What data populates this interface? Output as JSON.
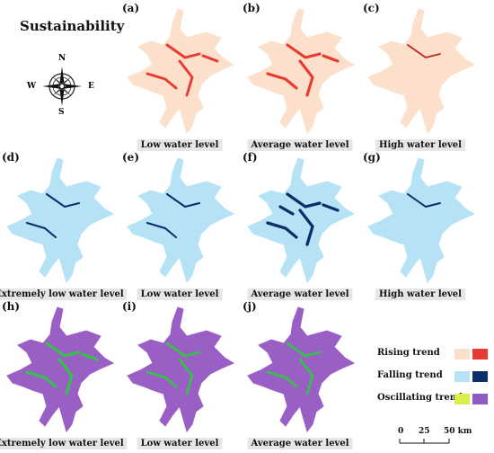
{
  "title": "Sustainability",
  "compass": {
    "n": "N",
    "s": "S",
    "e": "E",
    "w": "W"
  },
  "panels": [
    {
      "label": "(a)",
      "caption": "Low water level",
      "fill": "#fce0cb",
      "accent": "#e83a32",
      "accent_share": 0.35
    },
    {
      "label": "(b)",
      "caption": "Average water level",
      "fill": "#fce0cb",
      "accent": "#e83a32",
      "accent_share": 0.4
    },
    {
      "label": "(c)",
      "caption": "High water level",
      "fill": "#fce0cb",
      "accent": "#c2281f",
      "accent_share": 0.08
    },
    {
      "label": "(d)",
      "caption": "Extremely low water level",
      "fill": "#b5e3f5",
      "accent": "#0b2f6b",
      "accent_share": 0.15
    },
    {
      "label": "(e)",
      "caption": "Low water level",
      "fill": "#b5e3f5",
      "accent": "#0b2f6b",
      "accent_share": 0.15
    },
    {
      "label": "(f)",
      "caption": "Average water level",
      "fill": "#b5e3f5",
      "accent": "#0b2f6b",
      "accent_share": 0.45
    },
    {
      "label": "(g)",
      "caption": "High water level",
      "fill": "#b5e3f5",
      "accent": "#0b2f6b",
      "accent_share": 0.12
    },
    {
      "label": "(h)",
      "caption": "Extremely low water level",
      "fill": "#9a5fc4",
      "accent": "#35c24a",
      "accent_share": 0.4
    },
    {
      "label": "(i)",
      "caption": "Low water level",
      "fill": "#9a5fc4",
      "accent": "#35c24a",
      "accent_share": 0.3
    },
    {
      "label": "(j)",
      "caption": "Average water level",
      "fill": "#9a5fc4",
      "accent": "#35c24a",
      "accent_share": 0.3
    }
  ],
  "legend": [
    {
      "label": "Rising trend",
      "colors": [
        "#fce0cb",
        "#e83a32"
      ]
    },
    {
      "label": "Falling trend",
      "colors": [
        "#b5e3f5",
        "#0b2f6b"
      ]
    },
    {
      "label": "Oscillating trend",
      "colors": [
        "#d9ee4a",
        "#8e5cc0"
      ]
    }
  ],
  "scale_bar": {
    "ticks": [
      "0",
      "25",
      "50 km"
    ]
  }
}
